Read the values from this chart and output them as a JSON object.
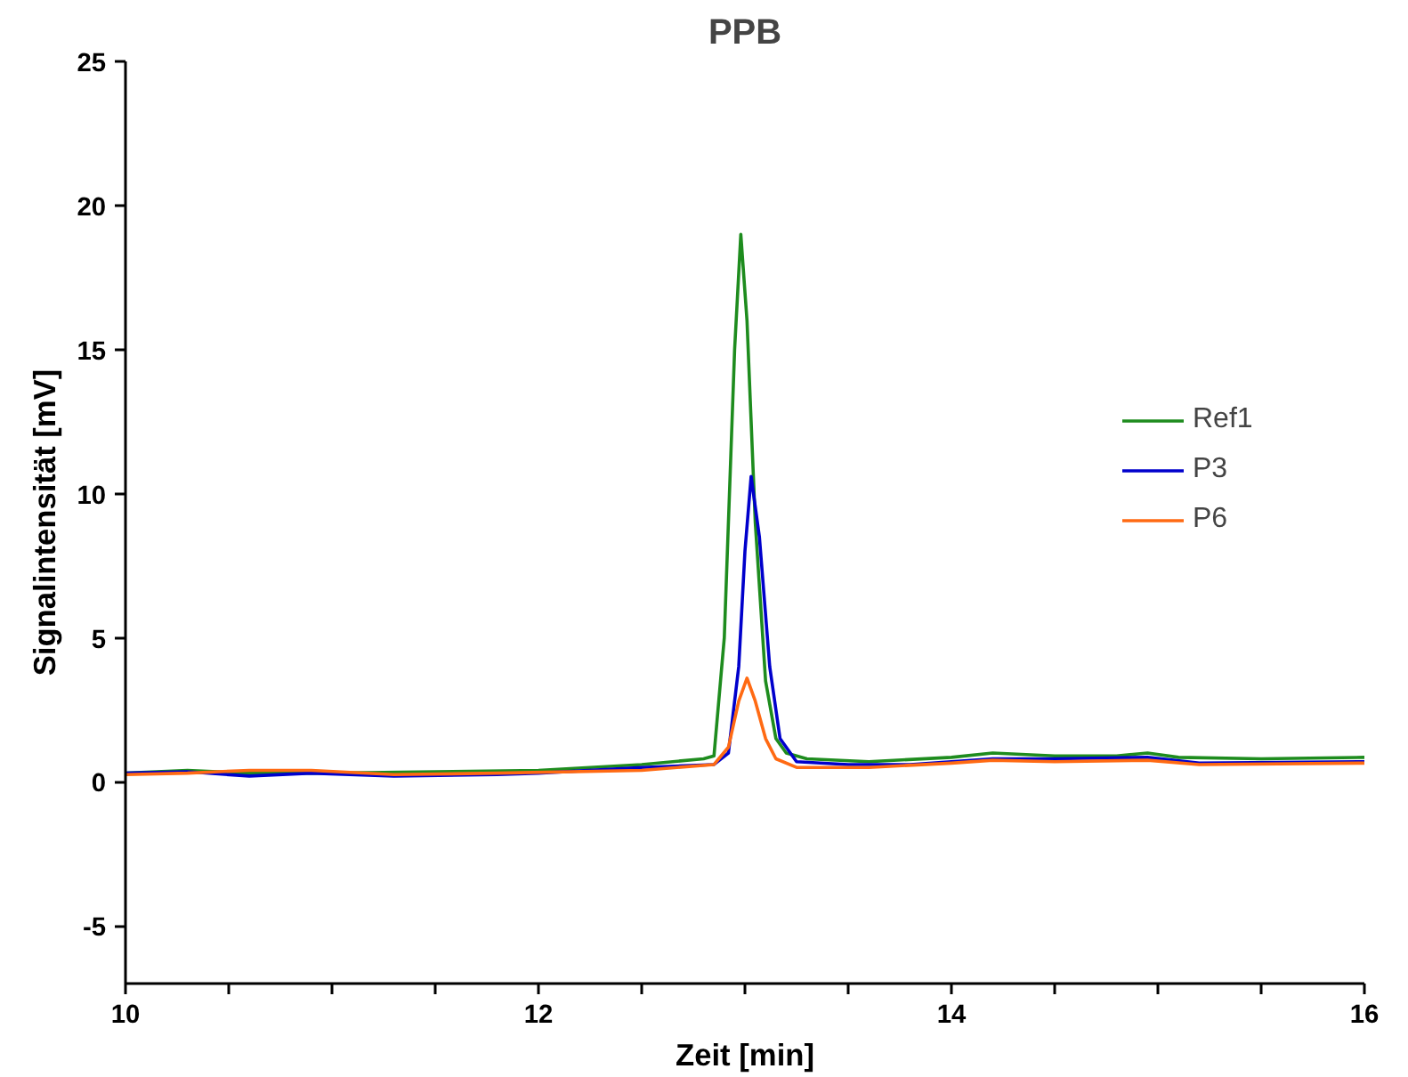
{
  "chart_data": {
    "type": "line",
    "title": "PPB",
    "xlabel": "Zeit [min]",
    "ylabel": "Signalintensität [mV]",
    "xlim": [
      10,
      16
    ],
    "xticks": [
      10,
      {
        "value": 10.5,
        "label": null
      },
      {
        "value": 11,
        "label": null
      },
      {
        "value": 11.5,
        "label": null
      },
      12,
      {
        "value": 12.5,
        "label": null
      },
      {
        "value": 13,
        "label": null
      },
      {
        "value": 13.5,
        "label": null
      },
      14,
      {
        "value": 14.5,
        "label": null
      },
      {
        "value": 15,
        "label": null
      },
      {
        "value": 15.5,
        "label": null
      },
      16
    ],
    "ylim": [
      -7,
      25
    ],
    "yticks": [
      -5,
      0,
      5,
      10,
      15,
      20,
      25
    ],
    "grid": false,
    "legend": "right",
    "line_style": "solid",
    "marker": "none",
    "series": [
      {
        "name": "Ref1",
        "color": "#1e8c1e",
        "x": [
          10,
          10.3,
          10.6,
          11,
          11.5,
          12,
          12.5,
          12.8,
          12.85,
          12.9,
          12.95,
          12.98,
          13.01,
          13.05,
          13.1,
          13.15,
          13.2,
          13.3,
          13.6,
          14,
          14.2,
          14.5,
          14.8,
          14.95,
          15.1,
          15.5,
          16
        ],
        "values": [
          0.3,
          0.4,
          0.3,
          0.3,
          0.35,
          0.4,
          0.6,
          0.8,
          0.9,
          5,
          15,
          19.0,
          16,
          9,
          3.5,
          1.5,
          1.0,
          0.8,
          0.7,
          0.85,
          1.0,
          0.9,
          0.9,
          1.0,
          0.85,
          0.8,
          0.85
        ]
      },
      {
        "name": "P3",
        "color": "#0000cc",
        "x": [
          10,
          10.3,
          10.6,
          10.9,
          11.3,
          11.8,
          12,
          12.5,
          12.85,
          12.92,
          12.97,
          13.0,
          13.03,
          13.07,
          13.12,
          13.17,
          13.25,
          13.5,
          13.8,
          14,
          14.2,
          14.5,
          14.95,
          15.2,
          16
        ],
        "values": [
          0.3,
          0.35,
          0.2,
          0.3,
          0.2,
          0.25,
          0.3,
          0.5,
          0.6,
          1.0,
          4,
          8,
          10.6,
          8.5,
          4,
          1.5,
          0.7,
          0.6,
          0.6,
          0.7,
          0.8,
          0.8,
          0.85,
          0.65,
          0.7
        ]
      },
      {
        "name": "P6",
        "color": "#ff6a13",
        "x": [
          10,
          10.3,
          10.6,
          10.9,
          11.3,
          11.8,
          12.5,
          12.85,
          12.92,
          12.97,
          13.01,
          13.05,
          13.1,
          13.15,
          13.25,
          13.6,
          14,
          14.2,
          14.5,
          14.95,
          15.2,
          16
        ],
        "values": [
          0.25,
          0.3,
          0.4,
          0.4,
          0.25,
          0.3,
          0.4,
          0.6,
          1.2,
          2.8,
          3.6,
          2.8,
          1.5,
          0.8,
          0.5,
          0.5,
          0.65,
          0.75,
          0.7,
          0.75,
          0.6,
          0.65
        ]
      }
    ]
  }
}
